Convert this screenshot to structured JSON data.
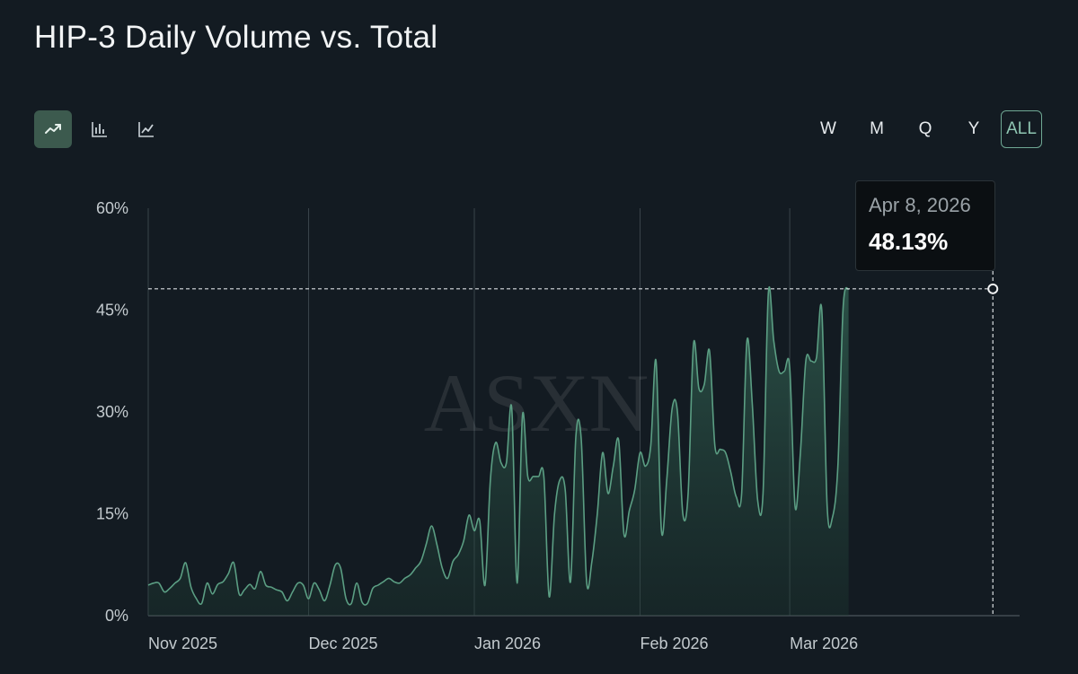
{
  "title": "HIP-3 Daily Volume vs. Total",
  "toolbar": {
    "views": [
      {
        "icon": "trend-line-icon",
        "active": true
      },
      {
        "icon": "bar-chart-icon",
        "active": false
      },
      {
        "icon": "line-chart-icon",
        "active": false
      }
    ]
  },
  "range": {
    "options": [
      "W",
      "M",
      "Q",
      "Y",
      "ALL"
    ],
    "selected": "ALL"
  },
  "tooltip": {
    "date": "Apr 8, 2026",
    "value": "48.13%"
  },
  "watermark": "ASXN",
  "colors": {
    "background": "#131b22",
    "line": "#5b9e83",
    "accent": "#6fa894"
  },
  "chart_data": {
    "type": "area",
    "title": "HIP-3 Daily Volume vs. Total",
    "ylabel": "",
    "ylim": [
      0,
      60
    ],
    "yticks": [
      0,
      15,
      30,
      45,
      60
    ],
    "ytick_labels": [
      "0%",
      "15%",
      "30%",
      "45%",
      "60%"
    ],
    "xlim_days": [
      0,
      163
    ],
    "xticks": [
      {
        "day": 0,
        "label": "Nov 2025"
      },
      {
        "day": 30,
        "label": "Dec 2025"
      },
      {
        "day": 61,
        "label": "Jan 2026"
      },
      {
        "day": 92,
        "label": "Feb 2026"
      },
      {
        "day": 120,
        "label": "Mar 2026"
      }
    ],
    "x_day_offset": 0,
    "x_start_date": "2025-11-01",
    "highlight": {
      "day": 158,
      "value": 48.13
    },
    "values": [
      4.5,
      4.8,
      4.8,
      3.5,
      4.0,
      4.8,
      5.5,
      7.8,
      4.2,
      2.5,
      1.8,
      4.8,
      3.2,
      4.6,
      5.0,
      6.2,
      7.8,
      3.2,
      3.8,
      4.6,
      4.0,
      6.5,
      4.5,
      4.2,
      3.8,
      3.5,
      2.2,
      3.5,
      4.8,
      4.5,
      2.5,
      4.8,
      3.8,
      2.2,
      4.5,
      7.5,
      7.0,
      2.5,
      1.8,
      4.8,
      2.0,
      1.8,
      4.0,
      4.5,
      5.0,
      5.5,
      5.0,
      4.8,
      5.5,
      6.0,
      7.0,
      8.0,
      10.5,
      13.2,
      10.5,
      7.0,
      5.5,
      8.0,
      9.0,
      11.0,
      14.8,
      12.5,
      14.0,
      4.5,
      20.0,
      25.5,
      22.5,
      22.5,
      30.5,
      4.8,
      29.5,
      20.5,
      20.5,
      20.5,
      20.5,
      2.8,
      15.0,
      20.0,
      18.5,
      5.0,
      26.5,
      26.0,
      5.0,
      8.0,
      15.0,
      24.0,
      18.0,
      22.0,
      25.8,
      12.0,
      15.5,
      18.5,
      24.0,
      22.0,
      25.0,
      37.5,
      12.5,
      20.0,
      30.5,
      30.0,
      15.0,
      18.0,
      40.0,
      33.5,
      34.0,
      39.0,
      25.0,
      24.5,
      24.0,
      21.0,
      17.5,
      18.0,
      40.5,
      31.0,
      17.0,
      18.0,
      47.5,
      40.5,
      36.0,
      36.0,
      36.5,
      16.0,
      24.0,
      37.5,
      37.5,
      38.0,
      45.0,
      16.0,
      14.5,
      22.0,
      45.5,
      48.13
    ]
  }
}
